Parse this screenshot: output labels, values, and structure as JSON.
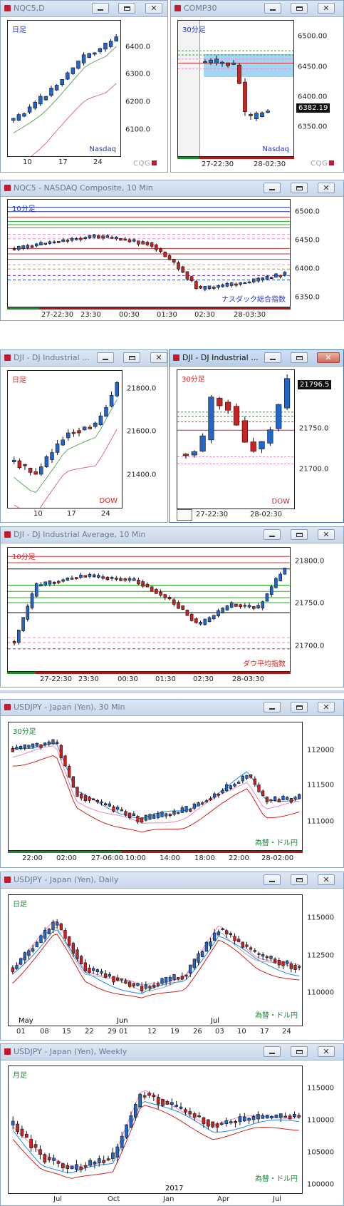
{
  "windows": {
    "nqc5d": {
      "title": "NQC5,D",
      "label": "日足",
      "note": "Nasdaq",
      "ticks": [
        "6400.0",
        "6300.0",
        "6200.0",
        "6100.0"
      ],
      "xt": [
        "10",
        "17",
        "24"
      ],
      "logo": "CQG"
    },
    "comp30": {
      "title": "COMP30",
      "label": "30分足",
      "note": "Nasdaq",
      "ticks": [
        "6500.00",
        "6450.00",
        "6400.00",
        "6350.00"
      ],
      "price": "6382.19",
      "xt": [
        "27-22:30",
        "28-02:30"
      ],
      "logo": "CQG"
    },
    "nqc5m10": {
      "title": "NQC5 - NASDAQ Composite, 10 Min",
      "label": "10分足",
      "note": "ナスダック総合指数",
      "ticks": [
        "6500.0",
        "6450.0",
        "6400.0",
        "6350.0"
      ],
      "xt": [
        "27-22:30",
        "23:30",
        "00:30",
        "01:30",
        "02:30",
        "28-03:30"
      ]
    },
    "djid": {
      "title": "DJI - DJ Industrial ...",
      "label": "日足",
      "note": "DOW",
      "ticks": [
        "21800.0",
        "21600.0",
        "21400.0"
      ],
      "xt": [
        "10",
        "17",
        "24"
      ]
    },
    "dji30": {
      "title": "DJI - DJ Industrial ...",
      "label": "30分足",
      "note": "DOW",
      "ticks": [
        "21750.0",
        "21700.0"
      ],
      "price": "21796.5",
      "xt": [
        "27-22:30",
        "28-02:30"
      ]
    },
    "djim10": {
      "title": "DJI - DJ Industrial Average, 10 Min",
      "label": "10分足",
      "note": "ダウ平均指数",
      "ticks": [
        "21800.0",
        "21750.0",
        "21700.0"
      ],
      "xt": [
        "27-22:30",
        "23:30",
        "00:30",
        "01:30",
        "02:30",
        "28-03:30"
      ]
    },
    "usdjpy30": {
      "title": "USDJPY - Japan (Yen), 30 Min",
      "label": "30分足",
      "note": "為替・ドル円",
      "ticks": [
        "112000",
        "111500",
        "111000"
      ],
      "xt": [
        "22:00",
        "02:00",
        "27-06:00",
        "10:00",
        "14:00",
        "18:00",
        "22:00",
        "28-02:00"
      ]
    },
    "usdjpyd": {
      "title": "USDJPY - Japan (Yen), Daily",
      "label": "日足",
      "note": "為替・ドル円",
      "ticks": [
        "115000",
        "112500",
        "110000"
      ],
      "xt_months": [
        "May",
        "Jun",
        "Jul"
      ],
      "xt": [
        "01",
        "08",
        "15",
        "22",
        "29",
        "01",
        "12",
        "19",
        "26",
        "03",
        "10",
        "17",
        "24"
      ]
    },
    "usdjpyw": {
      "title": "USDJPY - Japan (Yen), Weekly",
      "label": "月足",
      "note": "為替・ドル円",
      "ticks": [
        "115000",
        "110000",
        "105000",
        "100000"
      ],
      "xt_year": "2017",
      "xt": [
        "Jul",
        "Oct",
        "Jan",
        "Apr",
        "Jul"
      ]
    }
  },
  "colors": {
    "up": "#2266cc",
    "down": "#cc2222",
    "label_blue": "#2233cc",
    "label_red": "#dd2222",
    "label_green": "#118833"
  }
}
